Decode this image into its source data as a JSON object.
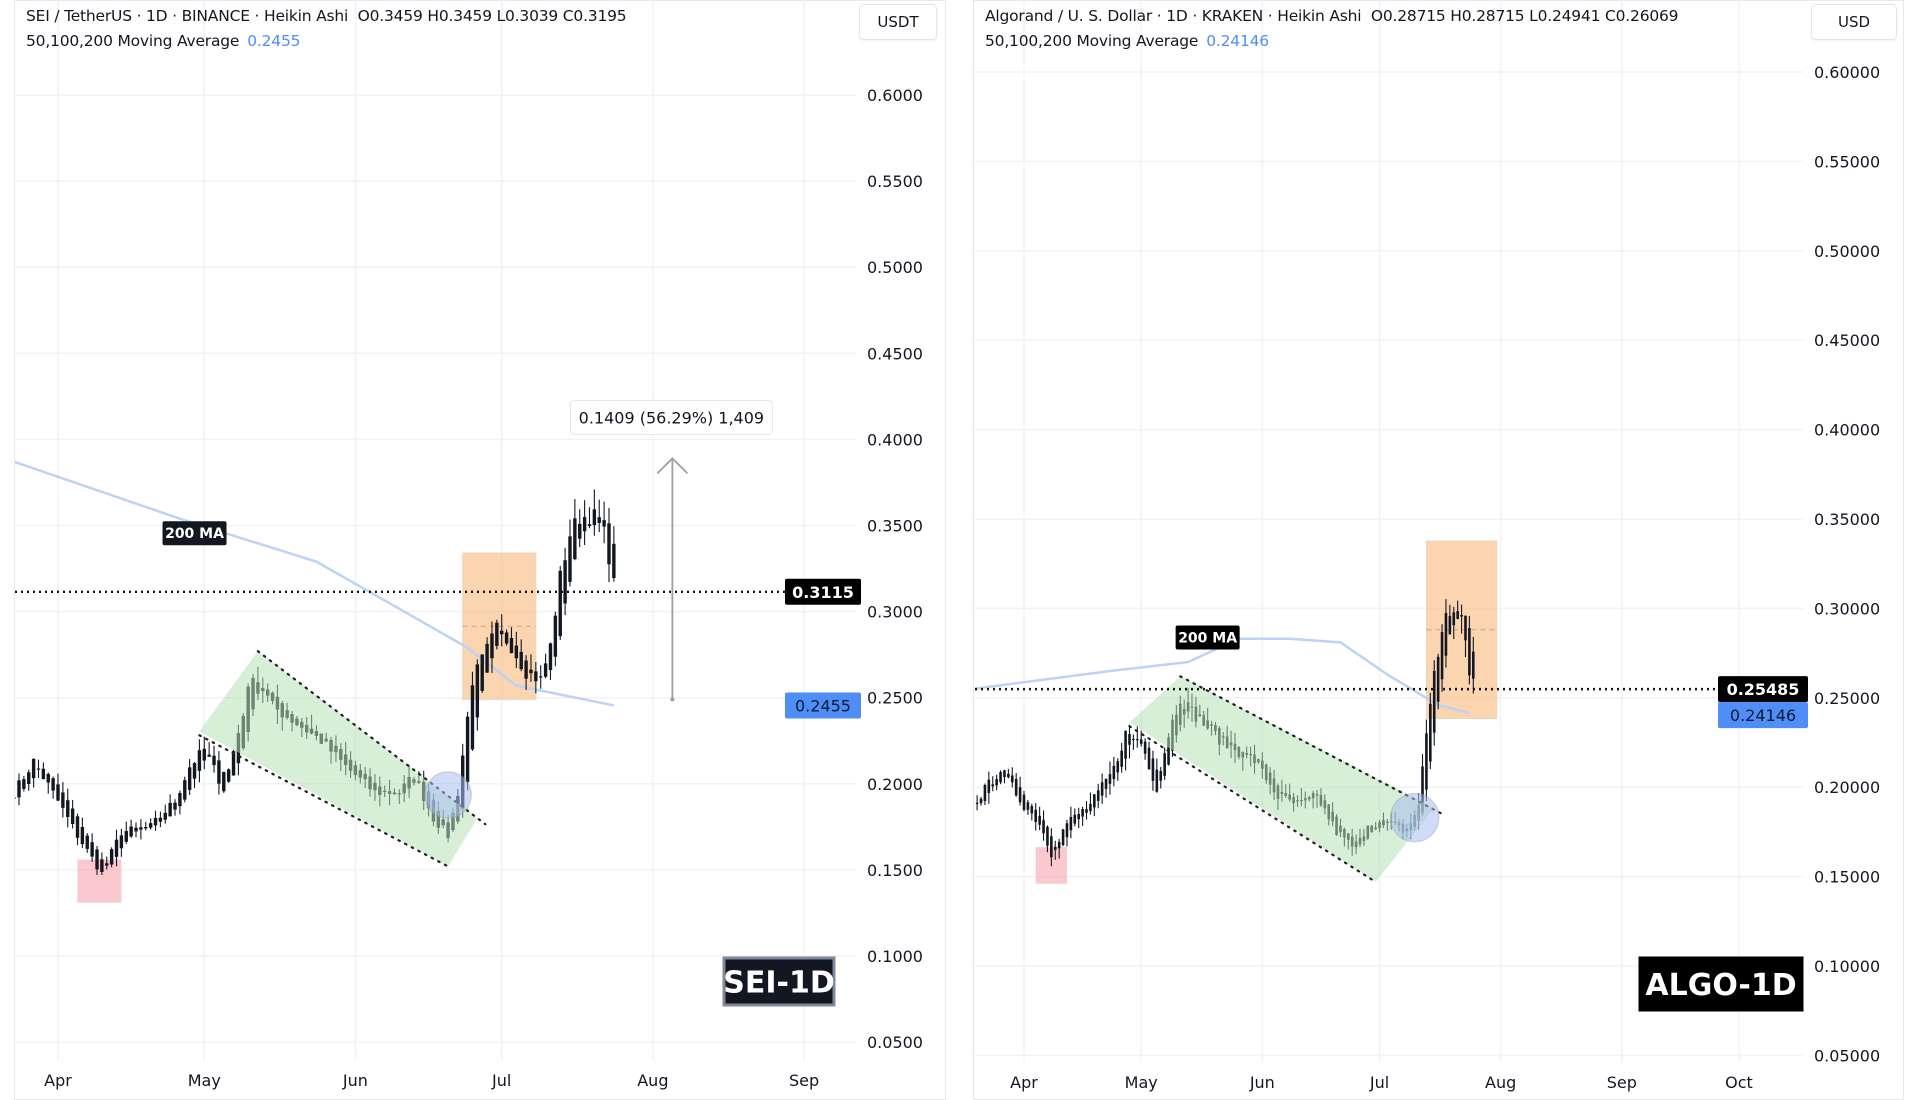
{
  "charts": [
    {
      "id": "sei",
      "header": {
        "title": "SEI / TetherUS · 1D · BINANCE · Heikin Ashi",
        "ohlc": "O0.3459  H0.3459  L0.3039  C0.3195",
        "ma_label": "50,100,200 Moving Average",
        "ma_value": "0.2455"
      },
      "currency_button": "USDT",
      "watermark": "SEI-1D",
      "ma_tag": "200 MA",
      "measure_label": "0.1409 (56.29%) 1,409",
      "current_price_label": "0.3115",
      "ma_price_label": "0.2455"
    },
    {
      "id": "algo",
      "header": {
        "title": "Algorand / U. S. Dollar · 1D · KRAKEN · Heikin Ashi",
        "ohlc": "O0.28715  H0.28715  L0.24941  C0.26069",
        "ma_label": "50,100,200 Moving Average",
        "ma_value": "0.24146"
      },
      "currency_button": "USD",
      "watermark": "ALGO-1D",
      "ma_tag": "200 MA",
      "current_price_label": "0.25485",
      "ma_price_label": "0.24146"
    }
  ],
  "colors": {
    "candle": "#131722",
    "ma": "#bcd3f5",
    "channel": "#b7e0b7",
    "box_orange": "#f9c48f",
    "box_red": "#f6a5ad",
    "circle": "#a8bff2",
    "price_tag": "#000000",
    "ma_tag_bg": "#4f8ef7"
  },
  "chart_data": [
    {
      "type": "candlestick",
      "style": "heikin-ashi",
      "y_ticks": [
        "0.6000",
        "0.5500",
        "0.5000",
        "0.4500",
        "0.4000",
        "0.3500",
        "0.3000",
        "0.2500",
        "0.2000",
        "0.1500",
        "0.1000",
        "0.0500"
      ],
      "x_ticks": [
        "Apr",
        "May",
        "Jun",
        "Jul",
        "Aug",
        "Sep"
      ],
      "ylim": [
        0.03,
        0.63
      ],
      "grid": true,
      "close_path": [
        [
          "03-23",
          0.195
        ],
        [
          "03-27",
          0.213
        ],
        [
          "04-01",
          0.19
        ],
        [
          "04-05",
          0.17
        ],
        [
          "04-10",
          0.148
        ],
        [
          "04-14",
          0.172
        ],
        [
          "04-20",
          0.175
        ],
        [
          "04-25",
          0.19
        ],
        [
          "04-28",
          0.21
        ],
        [
          "05-01",
          0.22
        ],
        [
          "05-05",
          0.197
        ],
        [
          "05-08",
          0.23
        ],
        [
          "05-11",
          0.265
        ],
        [
          "05-15",
          0.245
        ],
        [
          "05-20",
          0.235
        ],
        [
          "05-25",
          0.225
        ],
        [
          "05-30",
          0.21
        ],
        [
          "06-05",
          0.195
        ],
        [
          "06-10",
          0.195
        ],
        [
          "06-13",
          0.205
        ],
        [
          "06-17",
          0.18
        ],
        [
          "06-20",
          0.17
        ],
        [
          "06-22",
          0.195
        ],
        [
          "06-25",
          0.26
        ],
        [
          "06-27",
          0.272
        ],
        [
          "06-30",
          0.29
        ],
        [
          "07-03",
          0.28
        ],
        [
          "07-06",
          0.265
        ],
        [
          "07-09",
          0.26
        ],
        [
          "07-11",
          0.28
        ],
        [
          "07-13",
          0.32
        ],
        [
          "07-15",
          0.345
        ],
        [
          "07-17",
          0.355
        ],
        [
          "07-20",
          0.355
        ],
        [
          "07-22",
          0.345
        ],
        [
          "07-24",
          0.3195
        ]
      ],
      "ma200": [
        [
          "03-23",
          0.387
        ],
        [
          "04-27",
          0.353
        ],
        [
          "05-24",
          0.329
        ],
        [
          "06-11",
          0.3
        ],
        [
          "06-24",
          0.279
        ],
        [
          "07-04",
          0.257
        ],
        [
          "07-24",
          0.2455
        ]
      ],
      "current_price": 0.3115,
      "ma_value": 0.2455,
      "annotations": {
        "channel": [
          [
            "04-30",
            0.2305
          ],
          [
            "05-12",
            0.277
          ],
          [
            "06-26",
            0.18
          ],
          [
            "06-20",
            0.152
          ]
        ],
        "circle": [
          "06-20",
          0.1935
        ],
        "red_box": [
          [
            "04-05",
            0.156
          ],
          [
            "04-14",
            0.131
          ]
        ],
        "orange_box": [
          [
            "06-23",
            0.334
          ],
          [
            "07-08",
            0.249
          ]
        ],
        "measure": {
          "date": "08-05",
          "from": 0.249,
          "to": 0.389
        }
      }
    },
    {
      "type": "candlestick",
      "style": "heikin-ashi",
      "y_ticks": [
        "0.60000",
        "0.55000",
        "0.50000",
        "0.45000",
        "0.40000",
        "0.35000",
        "0.30000",
        "0.25000",
        "0.20000",
        "0.15000",
        "0.10000",
        "0.05000"
      ],
      "x_ticks": [
        "Apr",
        "May",
        "Jun",
        "Jul",
        "Aug",
        "Sep",
        "Oct"
      ],
      "ylim": [
        0.03,
        0.63
      ],
      "grid": true,
      "close_path": [
        [
          "03-19",
          0.19
        ],
        [
          "03-26",
          0.21
        ],
        [
          "04-01",
          0.19
        ],
        [
          "04-05",
          0.18
        ],
        [
          "04-08",
          0.163
        ],
        [
          "04-12",
          0.18
        ],
        [
          "04-18",
          0.19
        ],
        [
          "04-24",
          0.21
        ],
        [
          "04-27",
          0.23
        ],
        [
          "05-01",
          0.225
        ],
        [
          "05-05",
          0.2
        ],
        [
          "05-08",
          0.23
        ],
        [
          "05-11",
          0.25
        ],
        [
          "05-15",
          0.24
        ],
        [
          "05-22",
          0.225
        ],
        [
          "05-30",
          0.215
        ],
        [
          "06-05",
          0.195
        ],
        [
          "06-10",
          0.19
        ],
        [
          "06-15",
          0.195
        ],
        [
          "06-20",
          0.175
        ],
        [
          "06-25",
          0.165
        ],
        [
          "06-28",
          0.18
        ],
        [
          "07-03",
          0.18
        ],
        [
          "07-08",
          0.175
        ],
        [
          "07-11",
          0.19
        ],
        [
          "07-13",
          0.23
        ],
        [
          "07-15",
          0.265
        ],
        [
          "07-18",
          0.295
        ],
        [
          "07-20",
          0.3
        ],
        [
          "07-22",
          0.295
        ],
        [
          "07-24",
          0.262
        ],
        [
          "07-25",
          0.2607
        ]
      ],
      "ma200": [
        [
          "03-19",
          0.255
        ],
        [
          "04-23",
          0.265
        ],
        [
          "05-13",
          0.27
        ],
        [
          "05-26",
          0.283
        ],
        [
          "06-08",
          0.283
        ],
        [
          "06-21",
          0.281
        ],
        [
          "07-03",
          0.263
        ],
        [
          "07-16",
          0.246
        ],
        [
          "07-24",
          0.2415
        ]
      ],
      "current_price": 0.25485,
      "ma_value": 0.24146,
      "annotations": {
        "channel": [
          [
            "04-28",
            0.2363
          ],
          [
            "05-11",
            0.262
          ],
          [
            "07-15",
            0.1884
          ],
          [
            "06-30",
            0.147
          ]
        ],
        "circle": [
          "07-10",
          0.183
        ],
        "red_box": [
          [
            "04-04",
            0.1665
          ],
          [
            "04-12",
            0.146
          ]
        ],
        "orange_box": [
          [
            "07-13",
            0.3377
          ],
          [
            "07-31",
            0.2384
          ]
        ]
      }
    }
  ]
}
